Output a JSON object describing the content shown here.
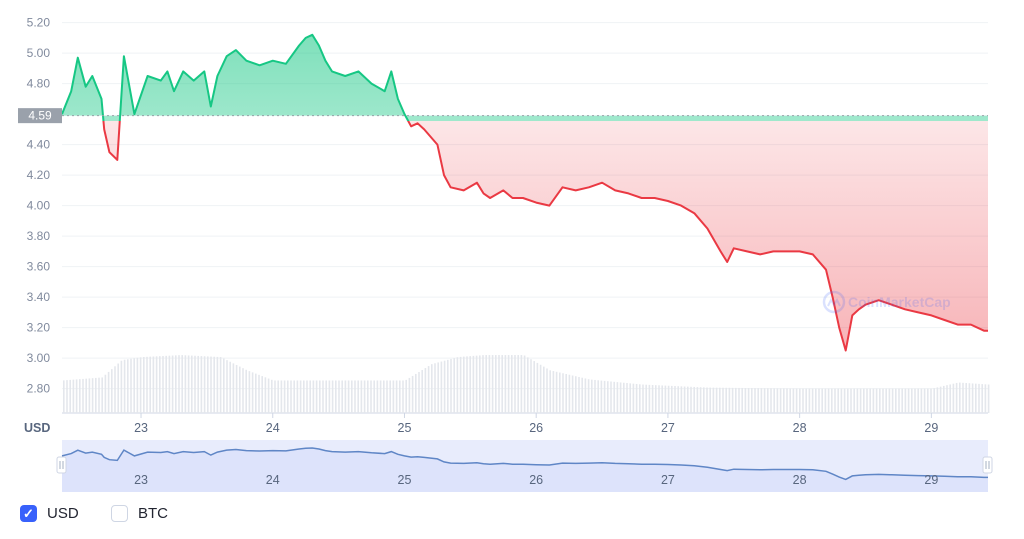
{
  "chart_data": {
    "type": "line",
    "unit_label": "USD",
    "reference_value": 4.59,
    "reference_label": "4.59",
    "watermark": "CoinMarketCap",
    "y_ticks": [
      "5.20",
      "5.00",
      "4.80",
      "4.40",
      "4.20",
      "4.00",
      "3.80",
      "3.60",
      "3.40",
      "3.20",
      "3.00",
      "2.80"
    ],
    "ylim": [
      2.64,
      5.25
    ],
    "x_ticks": [
      "23",
      "24",
      "25",
      "26",
      "27",
      "28",
      "29"
    ],
    "xlim": [
      22.4,
      29.43
    ],
    "series": [
      {
        "x": [
          22.4,
          22.47,
          22.52,
          22.58,
          22.63,
          22.7,
          22.72,
          22.76,
          22.82,
          22.87,
          22.95,
          23.05,
          23.15,
          23.2,
          23.25,
          23.32,
          23.4,
          23.48,
          23.53,
          23.58,
          23.65,
          23.72,
          23.8,
          23.9,
          24.0,
          24.1,
          24.2,
          24.25,
          24.3,
          24.35,
          24.4,
          24.45,
          24.55,
          24.65,
          24.75,
          24.85,
          24.9,
          24.95,
          25.0,
          25.05,
          25.1,
          25.15,
          25.25,
          25.3,
          25.35,
          25.45,
          25.55,
          25.6,
          25.65,
          25.75,
          25.82,
          25.9,
          26.0,
          26.1,
          26.2,
          26.3,
          26.4,
          26.5,
          26.6,
          26.7,
          26.8,
          26.9,
          27.0,
          27.1,
          27.2,
          27.3,
          27.4,
          27.45,
          27.5,
          27.6,
          27.7,
          27.8,
          27.9,
          28.0,
          28.1,
          28.2,
          28.25,
          28.3,
          28.35,
          28.4,
          28.45,
          28.5,
          28.6,
          28.7,
          28.8,
          28.9,
          29.0,
          29.1,
          29.2,
          29.3,
          29.4,
          29.43
        ],
        "y": [
          4.6,
          4.75,
          4.97,
          4.78,
          4.85,
          4.7,
          4.5,
          4.35,
          4.3,
          4.98,
          4.6,
          4.85,
          4.82,
          4.88,
          4.75,
          4.88,
          4.82,
          4.88,
          4.65,
          4.85,
          4.98,
          5.02,
          4.95,
          4.92,
          4.95,
          4.93,
          5.05,
          5.1,
          5.12,
          5.05,
          4.95,
          4.88,
          4.85,
          4.88,
          4.8,
          4.75,
          4.88,
          4.7,
          4.6,
          4.52,
          4.54,
          4.5,
          4.4,
          4.2,
          4.12,
          4.1,
          4.15,
          4.08,
          4.05,
          4.1,
          4.05,
          4.05,
          4.02,
          4.0,
          4.12,
          4.1,
          4.12,
          4.15,
          4.1,
          4.08,
          4.05,
          4.05,
          4.03,
          4.0,
          3.95,
          3.85,
          3.7,
          3.63,
          3.72,
          3.7,
          3.68,
          3.7,
          3.7,
          3.7,
          3.68,
          3.58,
          3.4,
          3.2,
          3.05,
          3.28,
          3.32,
          3.35,
          3.38,
          3.35,
          3.32,
          3.3,
          3.28,
          3.25,
          3.22,
          3.22,
          3.18,
          3.18
        ]
      }
    ],
    "volume": {
      "x": [
        22.4,
        22.7,
        22.85,
        23.0,
        23.3,
        23.6,
        23.8,
        24.0,
        24.5,
        25.0,
        25.2,
        25.4,
        25.6,
        25.9,
        26.1,
        26.4,
        26.8,
        27.3,
        28.0,
        28.5,
        29.0,
        29.2,
        29.43
      ],
      "level": [
        0.32,
        0.35,
        0.52,
        0.55,
        0.57,
        0.55,
        0.42,
        0.32,
        0.32,
        0.32,
        0.48,
        0.55,
        0.57,
        0.57,
        0.42,
        0.33,
        0.28,
        0.25,
        0.24,
        0.24,
        0.24,
        0.3,
        0.28
      ]
    }
  },
  "navigator": {
    "x_ticks": [
      "23",
      "24",
      "25",
      "26",
      "27",
      "28",
      "29"
    ]
  },
  "legend": {
    "usd_label": "USD",
    "btc_label": "BTC",
    "usd_checked": true,
    "btc_checked": false
  },
  "colors": {
    "up_line": "#16c784",
    "down_line": "#ea3943",
    "navigator_line": "#5f86c6",
    "navigator_fill": "#e8ecfc",
    "accent": "#3861fb"
  }
}
